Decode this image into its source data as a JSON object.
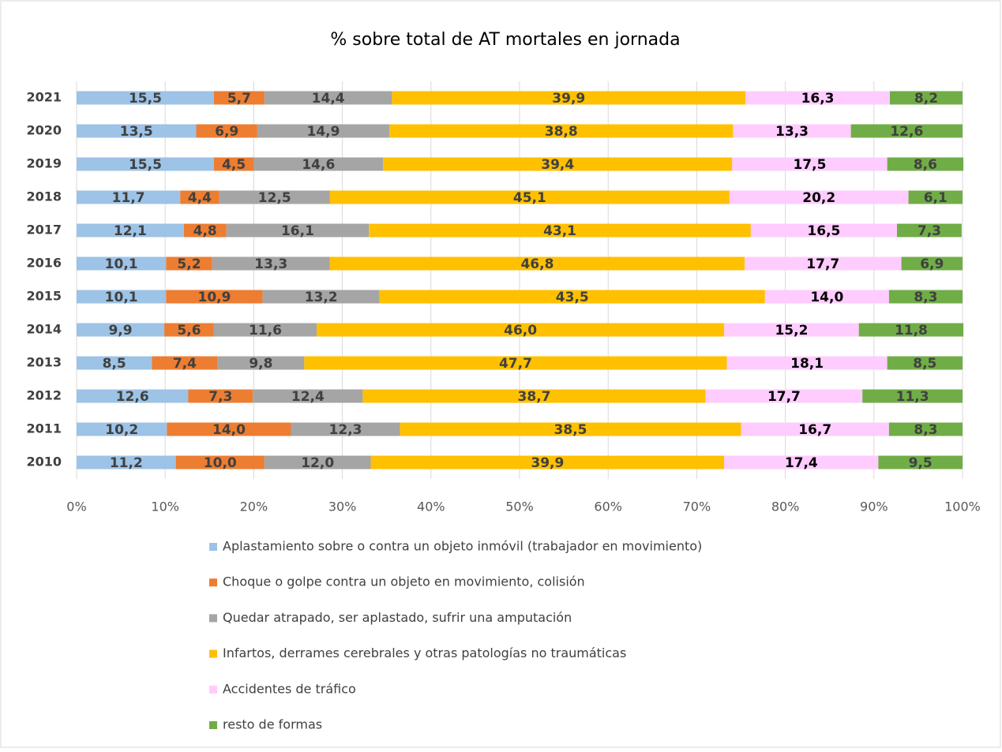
{
  "chart_data": {
    "type": "stacked_barh",
    "title": "% sobre total de AT mortales en jornada",
    "categories": [
      "2021",
      "2020",
      "2019",
      "2018",
      "2017",
      "2016",
      "2015",
      "2014",
      "2013",
      "2012",
      "2011",
      "2010"
    ],
    "series": [
      {
        "name": "Aplastamiento sobre o contra un objeto inmóvil (trabajador en movimiento)",
        "color": "#9dc3e6",
        "values": [
          15.5,
          13.5,
          15.5,
          11.7,
          12.1,
          10.1,
          10.1,
          9.9,
          8.5,
          12.6,
          10.2,
          11.2
        ],
        "value_labels": [
          "15,5",
          "13,5",
          "15,5",
          "11,7",
          "12,1",
          "10,1",
          "10,1",
          "9,9",
          "8,5",
          "12,6",
          "10,2",
          "11,2"
        ]
      },
      {
        "name": "Choque o golpe contra un objeto en movimiento, colisión",
        "color": "#ed7d31",
        "values": [
          5.7,
          6.9,
          4.5,
          4.4,
          4.8,
          5.2,
          10.9,
          5.6,
          7.4,
          7.3,
          14.0,
          10.0
        ],
        "value_labels": [
          "5,7",
          "6,9",
          "4,5",
          "4,4",
          "4,8",
          "5,2",
          "10,9",
          "5,6",
          "7,4",
          "7,3",
          "14,0",
          "10,0"
        ]
      },
      {
        "name": "Quedar atrapado, ser aplastado, sufrir una amputación",
        "color": "#a5a5a5",
        "values": [
          14.4,
          14.9,
          14.6,
          12.5,
          16.1,
          13.3,
          13.2,
          11.6,
          9.8,
          12.4,
          12.3,
          12.0
        ],
        "value_labels": [
          "14,4",
          "14,9",
          "14,6",
          "12,5",
          "16,1",
          "13,3",
          "13,2",
          "11,6",
          "9,8",
          "12,4",
          "12,3",
          "12,0"
        ]
      },
      {
        "name": "Infartos, derrames cerebrales y otras patologías no traumáticas",
        "color": "#ffc000",
        "values": [
          39.9,
          38.8,
          39.4,
          45.1,
          43.1,
          46.8,
          43.5,
          46.0,
          47.7,
          38.7,
          38.5,
          39.9
        ],
        "value_labels": [
          "39,9",
          "38,8",
          "39,4",
          "45,1",
          "43,1",
          "46,8",
          "43,5",
          "46,0",
          "47,7",
          "38,7",
          "38,5",
          "39,9"
        ]
      },
      {
        "name": "Accidentes de tráfico",
        "color": "#ffccff",
        "values": [
          16.3,
          13.3,
          17.5,
          20.2,
          16.5,
          17.7,
          14.0,
          15.2,
          18.1,
          17.7,
          16.7,
          17.4
        ],
        "value_labels": [
          "16,3",
          "13,3",
          "17,5",
          "20,2",
          "16,5",
          "17,7",
          "14,0",
          "15,2",
          "18,1",
          "17,7",
          "16,7",
          "17,4"
        ]
      },
      {
        "name": "resto de formas",
        "color": "#70ad47",
        "values": [
          8.2,
          12.6,
          8.6,
          6.1,
          7.3,
          6.9,
          8.3,
          11.8,
          8.5,
          11.3,
          8.3,
          9.5
        ],
        "value_labels": [
          "8,2",
          "12,6",
          "8,6",
          "6,1",
          "7,3",
          "6,9",
          "8,3",
          "11,8",
          "8,5",
          "11,3",
          "8,3",
          "9,5"
        ]
      }
    ],
    "xlim": [
      0,
      100
    ],
    "xticks": [
      {
        "value": 0,
        "label": "0%"
      },
      {
        "value": 10,
        "label": "10%"
      },
      {
        "value": 20,
        "label": "20%"
      },
      {
        "value": 30,
        "label": "30%"
      },
      {
        "value": 40,
        "label": "40%"
      },
      {
        "value": 50,
        "label": "50%"
      },
      {
        "value": 60,
        "label": "60%"
      },
      {
        "value": 70,
        "label": "70%"
      },
      {
        "value": 80,
        "label": "80%"
      },
      {
        "value": 90,
        "label": "90%"
      },
      {
        "value": 100,
        "label": "100%"
      }
    ],
    "grid": true
  }
}
